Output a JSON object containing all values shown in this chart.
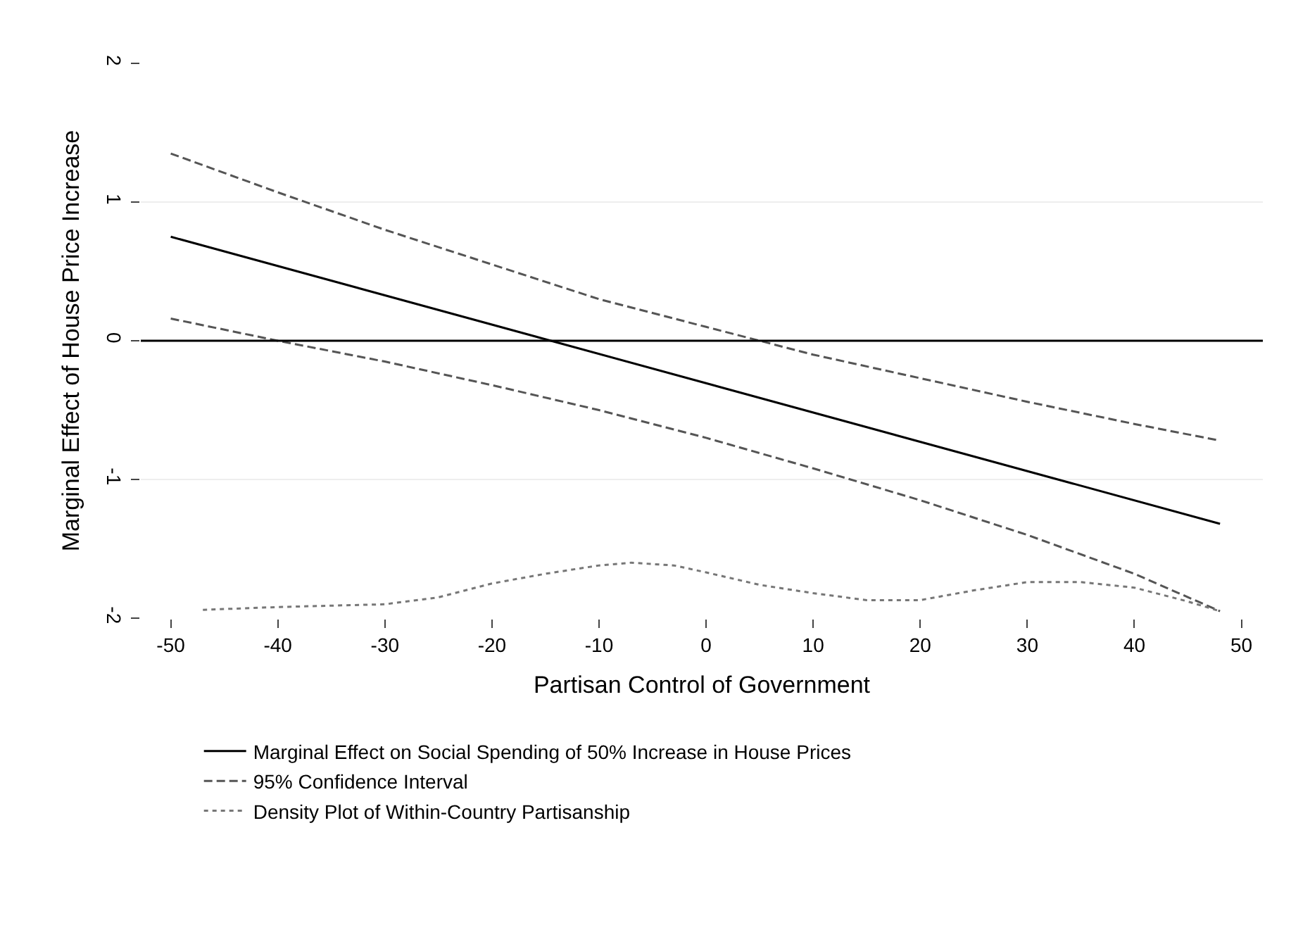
{
  "chart_data": {
    "type": "line",
    "xlabel": "Partisan Control of Government",
    "ylabel": "Marginal Effect of House Price Increase",
    "xlim": [
      -52.8,
      52
    ],
    "ylim": [
      -2,
      2
    ],
    "xticks": [
      -50,
      -40,
      -30,
      -20,
      -10,
      0,
      10,
      20,
      30,
      40,
      50
    ],
    "yticks": [
      -2,
      -1,
      0,
      1,
      2
    ],
    "grid": "y",
    "legend": "bottom",
    "marker": "none",
    "ref_lines": [
      {
        "axis": "y",
        "value": 0,
        "color": "#000000"
      }
    ],
    "series": [
      {
        "name": "Marginal Effect on Social Spending of 50% Increase in House Prices",
        "color": "#000000",
        "line_style": "solid",
        "x": [
          -50,
          48
        ],
        "values": [
          0.75,
          -1.32
        ]
      },
      {
        "name": "95% Confidence Interval",
        "color": "#555555",
        "line_style": "dashed",
        "x": [
          -50,
          -40,
          -30,
          -20,
          -10,
          0,
          5,
          10,
          20,
          30,
          40,
          48
        ],
        "values": [
          1.35,
          1.07,
          0.8,
          0.55,
          0.3,
          0.1,
          0,
          -0.1,
          -0.27,
          -0.44,
          -0.6,
          -0.72
        ]
      },
      {
        "color": "#555555",
        "line_style": "dashed",
        "x": [
          -50,
          -40,
          -30,
          -20,
          -10,
          0,
          10,
          20,
          30,
          40,
          48
        ],
        "values": [
          0.16,
          0,
          -0.15,
          -0.32,
          -0.5,
          -0.7,
          -0.92,
          -1.15,
          -1.4,
          -1.68,
          -1.95
        ]
      },
      {
        "name": "Density Plot of Within-Country Partisanship",
        "color": "#777777",
        "line_style": "dotted",
        "x": [
          -47,
          -40,
          -30,
          -25,
          -20,
          -15,
          -10,
          -7,
          -3,
          0,
          5,
          10,
          15,
          20,
          25,
          30,
          35,
          40,
          45,
          48
        ],
        "values": [
          -1.94,
          -1.92,
          -1.9,
          -1.85,
          -1.75,
          -1.68,
          -1.62,
          -1.6,
          -1.62,
          -1.67,
          -1.76,
          -1.82,
          -1.87,
          -1.87,
          -1.8,
          -1.74,
          -1.74,
          -1.78,
          -1.88,
          -1.95
        ]
      }
    ]
  }
}
